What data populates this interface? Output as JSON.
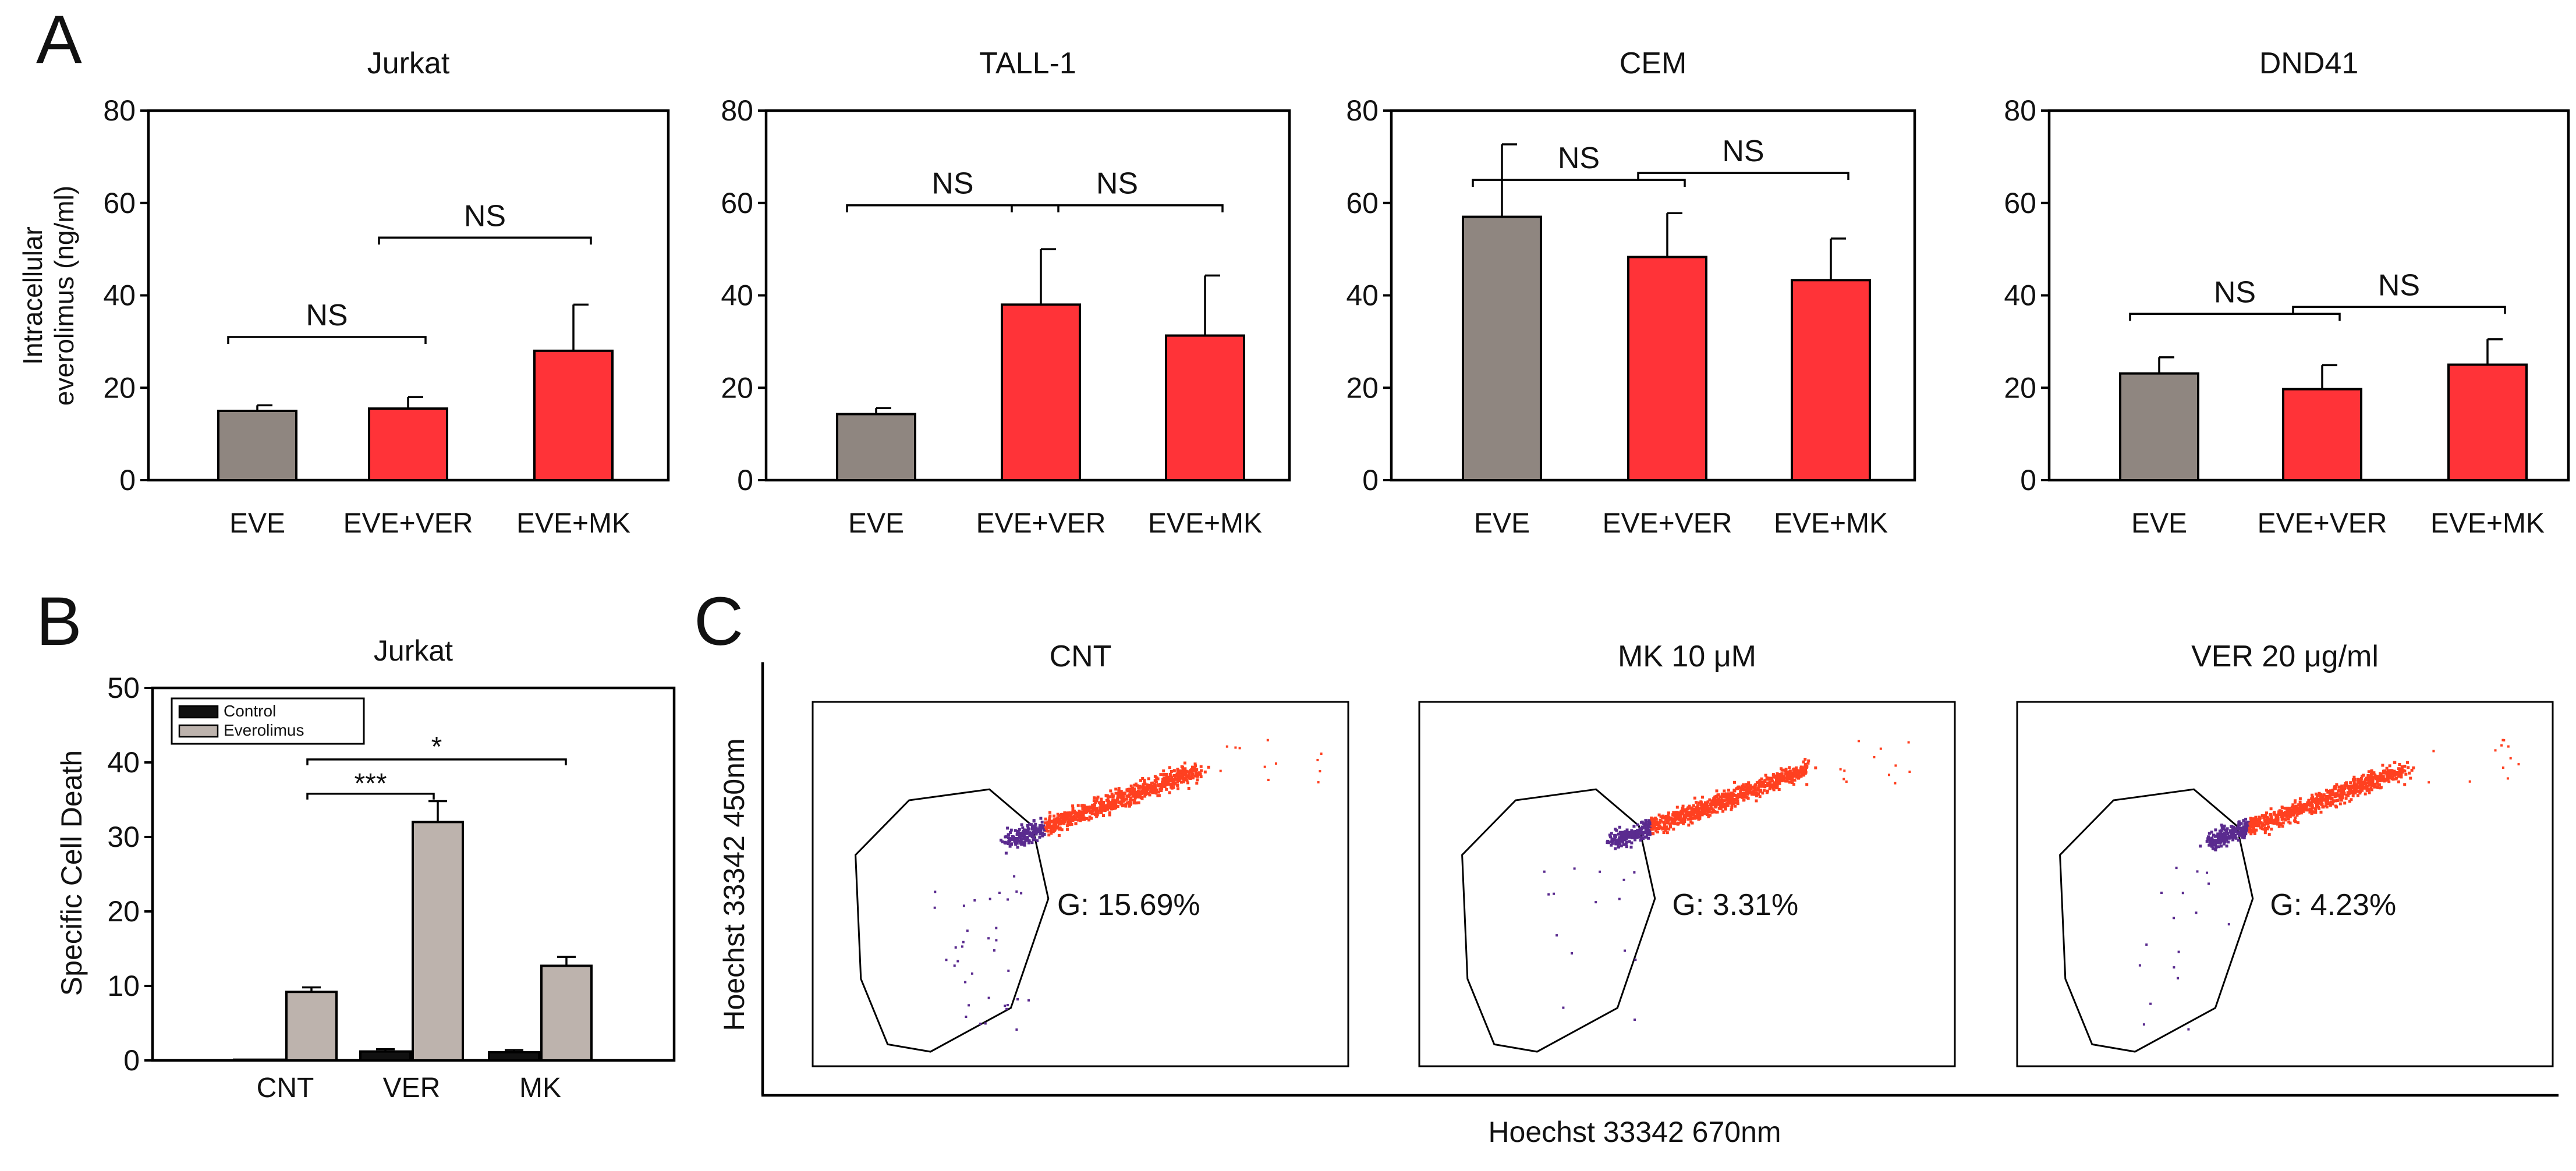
{
  "colors": {
    "eve": "#8f8680",
    "treated": "#ff3338",
    "control": "#111111",
    "everolimus": "#bdb3ad",
    "gated": "#5a2b8f",
    "ungated": "#ff4020"
  },
  "panel_letters": {
    "a": "A",
    "b": "B",
    "c": "C"
  },
  "chart_data": [
    {
      "id": "A1",
      "type": "bar",
      "title": "Jurkat",
      "ylabel_line1": "Intracellular",
      "ylabel_line2": "everolimus (ng/ml)",
      "ylim": [
        0,
        80
      ],
      "yticks": [
        0,
        20,
        40,
        60,
        80
      ],
      "categories": [
        "EVE",
        "EVE+VER",
        "EVE+MK"
      ],
      "values": [
        15,
        15.5,
        28
      ],
      "errors": [
        1.2,
        2.5,
        10
      ],
      "brackets": [
        {
          "from": 0,
          "to": 1,
          "y": 31,
          "label": "NS"
        },
        {
          "from": 1,
          "to": 2,
          "y": 52.5,
          "label": "NS"
        }
      ]
    },
    {
      "id": "A2",
      "type": "bar",
      "title": "TALL-1",
      "ylim": [
        0,
        80
      ],
      "yticks": [
        0,
        20,
        40,
        60,
        80
      ],
      "categories": [
        "EVE",
        "EVE+VER",
        "EVE+MK"
      ],
      "values": [
        14.3,
        38,
        31.3
      ],
      "errors": [
        1.3,
        12,
        13
      ],
      "brackets": [
        {
          "from": 0,
          "to": 1,
          "y": 59.5,
          "label": "NS"
        },
        {
          "from": 1,
          "to": 2,
          "y": 59.5,
          "label": "NS"
        }
      ]
    },
    {
      "id": "A3",
      "type": "bar",
      "title": "CEM",
      "ylim": [
        0,
        80
      ],
      "yticks": [
        0,
        20,
        40,
        60,
        80
      ],
      "categories": [
        "EVE",
        "EVE+VER",
        "EVE+MK"
      ],
      "values": [
        57,
        48.3,
        43.3
      ],
      "errors": [
        15.7,
        9.5,
        9
      ],
      "brackets": [
        {
          "from": 0,
          "to": 1,
          "y": 65,
          "label": "NS"
        },
        {
          "from": 1,
          "to": 2,
          "y": 66.5,
          "label": "NS"
        }
      ]
    },
    {
      "id": "A4",
      "type": "bar",
      "title": "DND41",
      "ylim": [
        0,
        80
      ],
      "yticks": [
        0,
        20,
        40,
        60,
        80
      ],
      "categories": [
        "EVE",
        "EVE+VER",
        "EVE+MK"
      ],
      "values": [
        23.1,
        19.7,
        25
      ],
      "errors": [
        3.5,
        5.2,
        5.5
      ],
      "brackets": [
        {
          "from": 0,
          "to": 1,
          "y": 36,
          "label": "NS"
        },
        {
          "from": 1,
          "to": 2,
          "y": 37.5,
          "label": "NS"
        }
      ]
    },
    {
      "id": "B",
      "type": "bar",
      "title": "Jurkat",
      "ylabel": "Specific Cell Death",
      "ylim": [
        0,
        50
      ],
      "yticks": [
        0,
        10,
        20,
        30,
        40,
        50
      ],
      "categories": [
        "CNT",
        "VER",
        "MK"
      ],
      "series": [
        {
          "name": "Control",
          "values": [
            0.1,
            1.2,
            1.1
          ],
          "errors": [
            0,
            0.3,
            0.3
          ]
        },
        {
          "name": "Everolimus",
          "values": [
            9.2,
            32,
            12.7
          ],
          "errors": [
            0.6,
            2.8,
            1.2
          ]
        }
      ],
      "legend_position": "top-left",
      "brackets": [
        {
          "from": 0,
          "to": 2,
          "y": 40.4,
          "label": "*"
        },
        {
          "from": 0,
          "to": 1,
          "y": 35.8,
          "label": "***"
        }
      ]
    }
  ],
  "flow_panels": [
    {
      "title": "CNT",
      "gate_label": "G: 15.69%",
      "gated_fraction": 0.1569
    },
    {
      "title": "MK 10 μM",
      "gate_label": "G: 3.31%",
      "gated_fraction": 0.0331
    },
    {
      "title": "VER 20 μg/ml",
      "gate_label": "G: 4.23%",
      "gated_fraction": 0.0423
    }
  ],
  "flow_axes": {
    "xlabel": "Hoechst 33342 670nm",
    "ylabel": "Hoechst 33342 450nm"
  }
}
